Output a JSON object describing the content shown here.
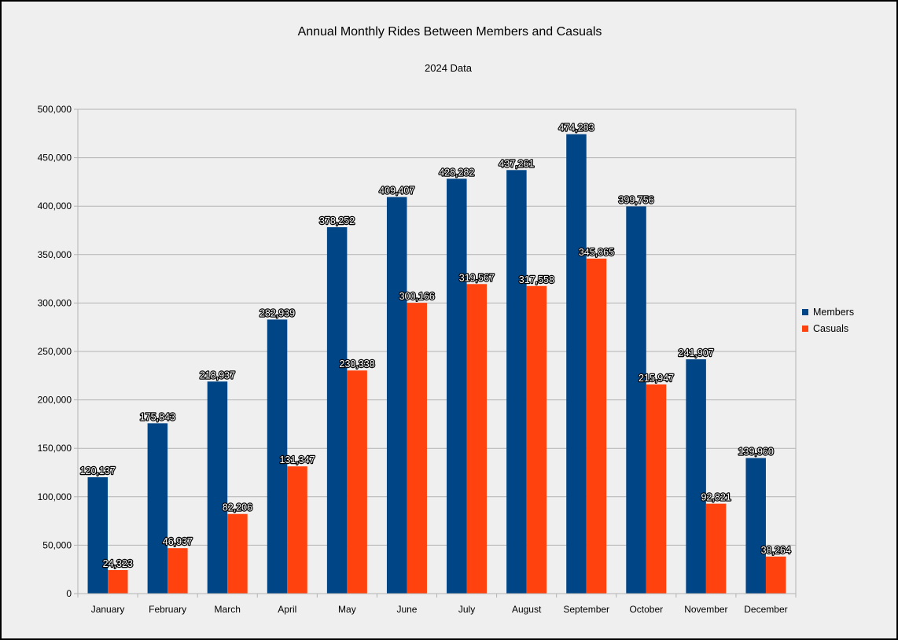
{
  "chart_data": {
    "type": "bar",
    "title": "Annual Monthly Rides Between Members and Casuals",
    "subtitle": "2024 Data",
    "xlabel": "",
    "ylabel": "",
    "ylim": [
      0,
      500000
    ],
    "yticks": [
      0,
      50000,
      100000,
      150000,
      200000,
      250000,
      300000,
      350000,
      400000,
      450000,
      500000
    ],
    "grid": true,
    "legend": "right",
    "categories": [
      "January",
      "February",
      "March",
      "April",
      "May",
      "June",
      "July",
      "August",
      "September",
      "October",
      "November",
      "December"
    ],
    "series": [
      {
        "name": "Members",
        "color": "#004586",
        "values": [
          120137,
          175843,
          218937,
          282939,
          378252,
          409407,
          428282,
          437261,
          474283,
          399756,
          241907,
          139960
        ]
      },
      {
        "name": "Casuals",
        "color": "#ff420e",
        "values": [
          24323,
          46937,
          82206,
          131347,
          230338,
          300166,
          319567,
          317558,
          345865,
          215947,
          92821,
          38264
        ]
      }
    ]
  }
}
